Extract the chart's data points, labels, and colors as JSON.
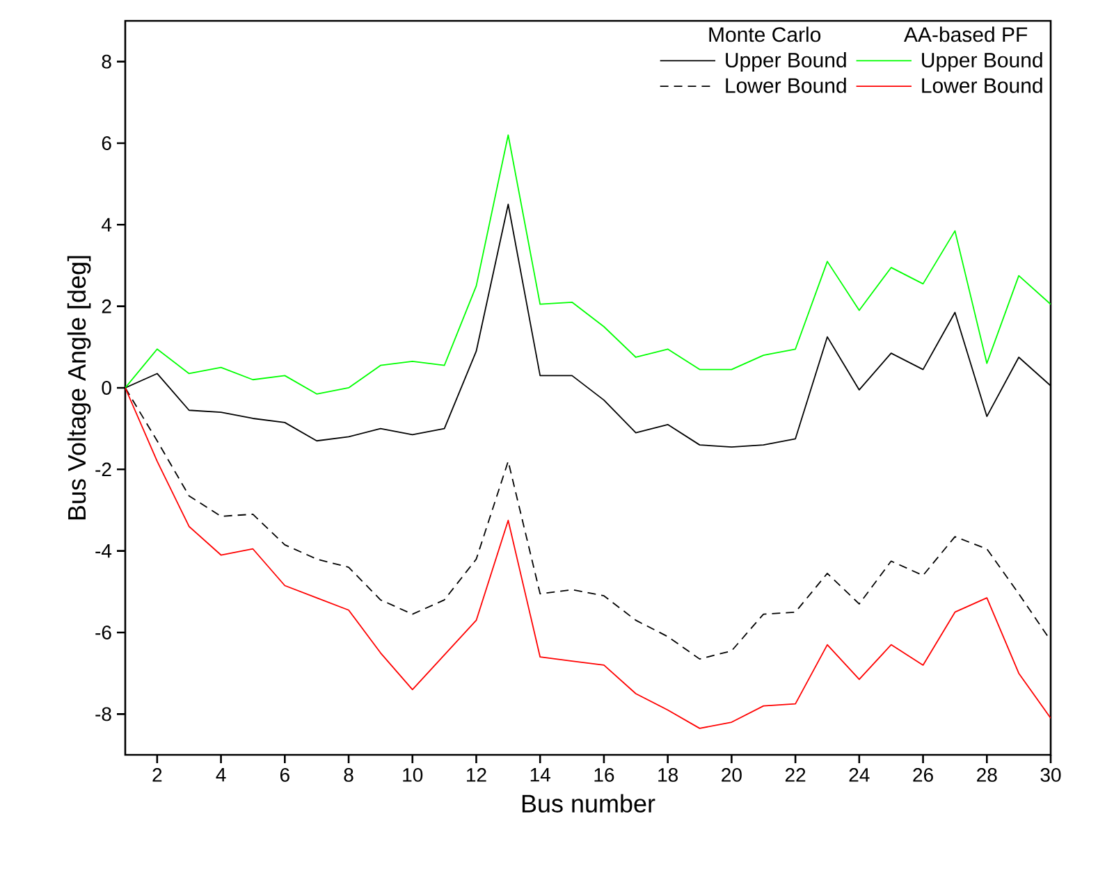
{
  "chart_data": {
    "type": "line",
    "xlabel": "Bus number",
    "ylabel": "Bus Voltage Angle [deg]",
    "x": [
      1,
      2,
      3,
      4,
      5,
      6,
      7,
      8,
      9,
      10,
      11,
      12,
      13,
      14,
      15,
      16,
      17,
      18,
      19,
      20,
      21,
      22,
      23,
      24,
      25,
      26,
      27,
      28,
      29,
      30
    ],
    "xlim": [
      1,
      30
    ],
    "xticks": [
      2,
      4,
      6,
      8,
      10,
      12,
      14,
      16,
      18,
      20,
      22,
      24,
      26,
      28,
      30
    ],
    "ylim": [
      -9,
      9
    ],
    "yticks": [
      -8,
      -6,
      -4,
      -2,
      0,
      2,
      4,
      6,
      8
    ],
    "legend": "top right",
    "marker": "none",
    "annotations": [
      "Monte Carlo",
      "AA-based PF"
    ],
    "series": [
      {
        "name": "Upper Bound",
        "color": "#000000",
        "line_style": "solid",
        "values": [
          0,
          0.35,
          -0.55,
          -0.6,
          -0.75,
          -0.85,
          -1.3,
          -1.2,
          -1.0,
          -1.15,
          -1.0,
          0.9,
          4.5,
          0.3,
          0.3,
          -0.3,
          -1.1,
          -0.9,
          -1.4,
          -1.45,
          -1.4,
          -1.25,
          1.25,
          -0.05,
          0.85,
          0.45,
          1.85,
          -0.7,
          0.75,
          0.05
        ]
      },
      {
        "name": "Lower Bound",
        "color": "#000000",
        "line_style": "dashed",
        "values": [
          0,
          -1.3,
          -2.65,
          -3.15,
          -3.1,
          -3.85,
          -4.2,
          -4.4,
          -5.2,
          -5.55,
          -5.2,
          -4.2,
          -1.8,
          -5.05,
          -4.95,
          -5.1,
          -5.7,
          -6.1,
          -6.65,
          -6.45,
          -5.55,
          -5.5,
          -4.55,
          -5.3,
          -4.25,
          -4.6,
          -3.65,
          -3.95,
          -5.05,
          -6.2
        ]
      },
      {
        "name": "Upper Bound",
        "color": "#00ff00",
        "line_style": "solid",
        "values": [
          0,
          0.95,
          0.35,
          0.5,
          0.2,
          0.3,
          -0.15,
          0.0,
          0.55,
          0.65,
          0.55,
          2.5,
          6.2,
          2.05,
          2.1,
          1.5,
          0.75,
          0.95,
          0.45,
          0.45,
          0.8,
          0.95,
          3.1,
          1.9,
          2.95,
          2.55,
          3.85,
          0.6,
          2.75,
          2.05
        ]
      },
      {
        "name": "Lower Bound",
        "color": "#ff0000",
        "line_style": "solid",
        "values": [
          0,
          -1.8,
          -3.4,
          -4.1,
          -3.95,
          -4.85,
          -5.15,
          -5.45,
          -6.5,
          -7.4,
          -6.55,
          -5.7,
          -3.25,
          -6.6,
          -6.7,
          -6.8,
          -7.5,
          -7.9,
          -8.35,
          -8.2,
          -7.8,
          -7.75,
          -6.3,
          -7.15,
          -6.3,
          -6.8,
          -5.5,
          -5.15,
          -7.0,
          -8.1
        ]
      }
    ]
  }
}
